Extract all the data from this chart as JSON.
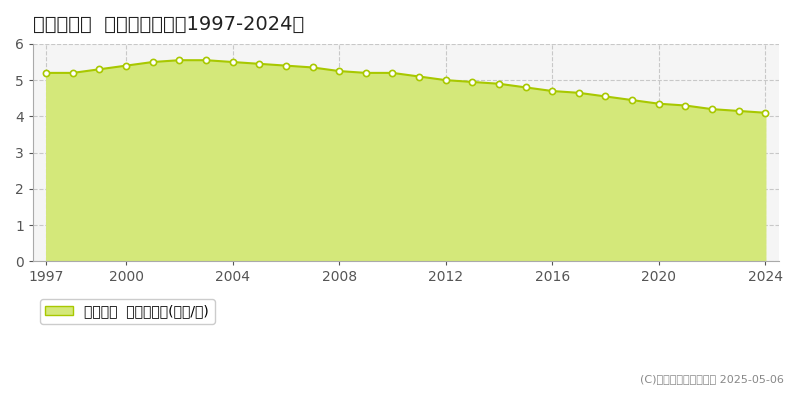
{
  "title": "鳥取市野坂  基準地価推移［1997-2024］",
  "years": [
    1997,
    1998,
    1999,
    2000,
    2001,
    2002,
    2003,
    2004,
    2005,
    2006,
    2007,
    2008,
    2009,
    2010,
    2011,
    2012,
    2013,
    2014,
    2015,
    2016,
    2017,
    2018,
    2019,
    2020,
    2021,
    2022,
    2023,
    2024
  ],
  "values": [
    5.2,
    5.2,
    5.3,
    5.4,
    5.5,
    5.55,
    5.55,
    5.5,
    5.45,
    5.4,
    5.35,
    5.25,
    5.2,
    5.2,
    5.1,
    5.0,
    4.95,
    4.9,
    4.8,
    4.7,
    4.65,
    4.55,
    4.45,
    4.35,
    4.3,
    4.2,
    4.15,
    4.1
  ],
  "line_color": "#a8c800",
  "fill_color": "#d4e87a",
  "marker_color": "#ffffff",
  "marker_edge_color": "#a8c800",
  "background_color": "#ffffff",
  "plot_bg_color": "#f5f5f5",
  "grid_color": "#c8c8c8",
  "ylim": [
    0,
    6
  ],
  "yticks": [
    0,
    1,
    2,
    3,
    4,
    5,
    6
  ],
  "xticks": [
    1997,
    2000,
    2004,
    2008,
    2012,
    2016,
    2020,
    2024
  ],
  "legend_label": "基準地価  平均坪単価(万円/坪)",
  "copyright_text": "(C)土地価格ドットコム 2025-05-06",
  "title_fontsize": 14,
  "tick_fontsize": 10,
  "legend_fontsize": 10
}
